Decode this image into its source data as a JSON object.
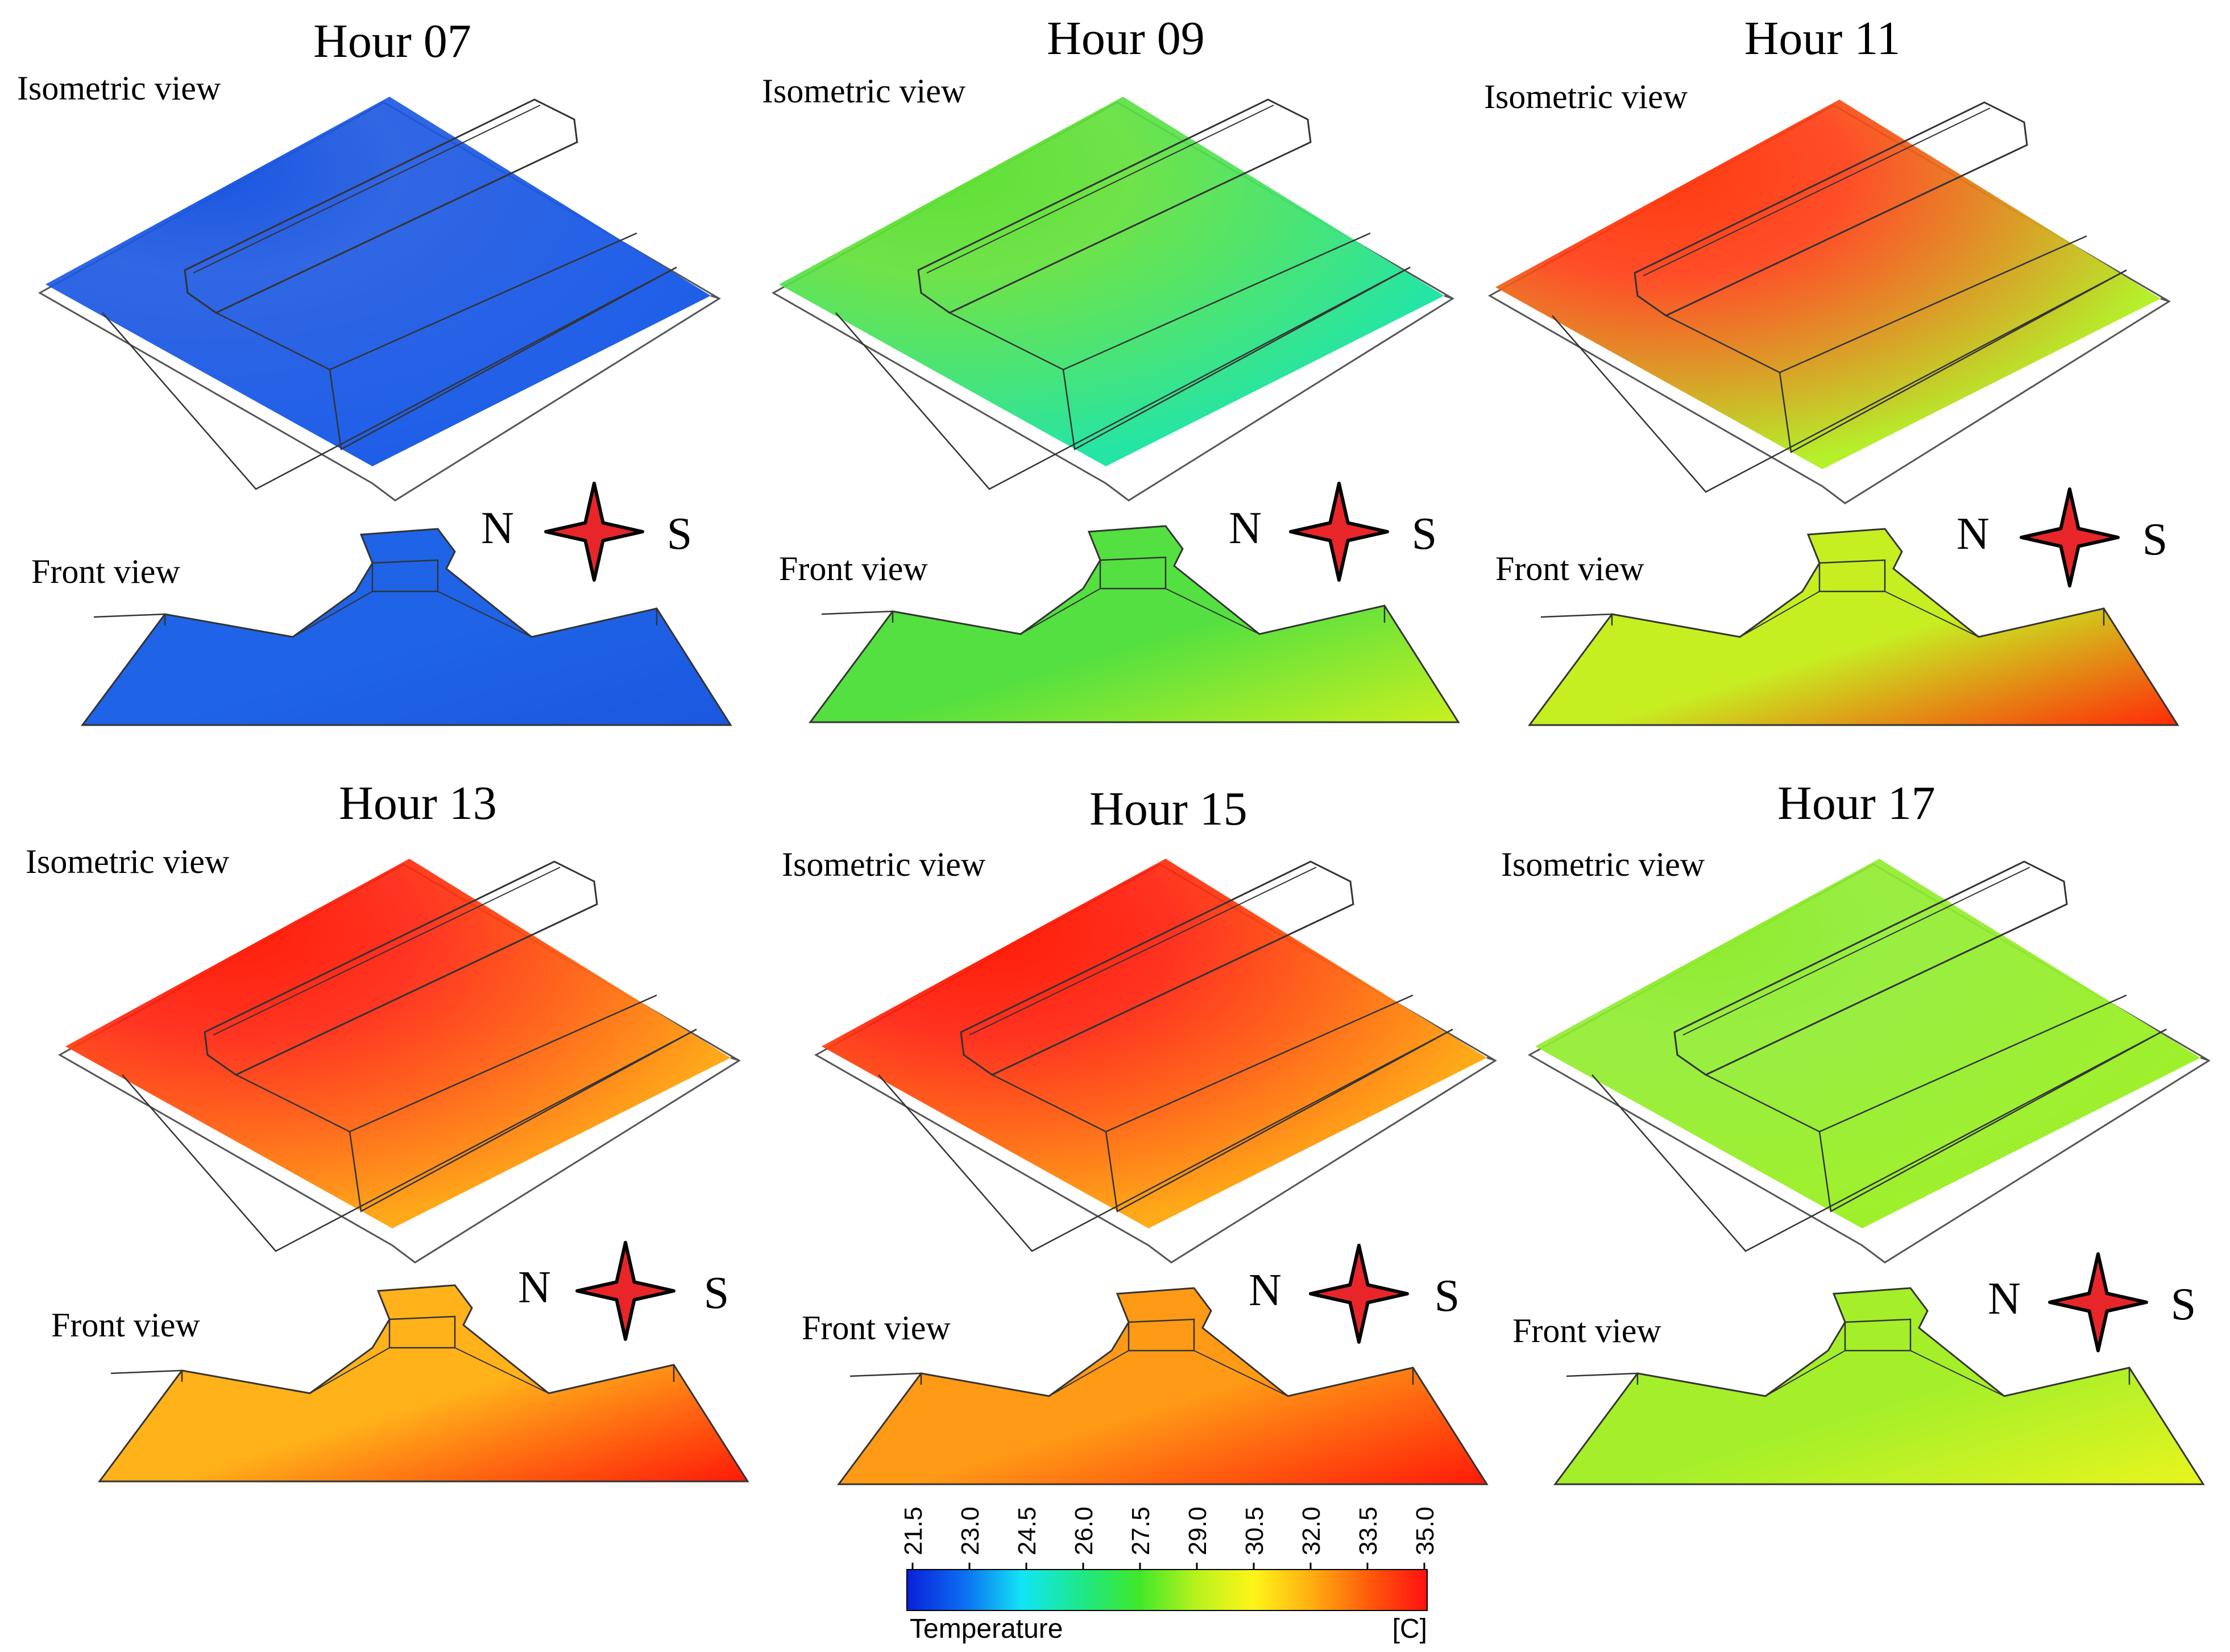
{
  "figure": {
    "panels": [
      {
        "title": "Hour 07",
        "iso_label": "Isometric view",
        "front_label": "Front view",
        "north": "N",
        "south": "S",
        "iso_base": "#1f5fe8",
        "iso_hot": "#1a56e0",
        "front_base": "#1f63e6",
        "front_hot": "#1b58df"
      },
      {
        "title": "Hour 09",
        "iso_label": "Isometric view",
        "front_label": "Front view",
        "north": "N",
        "south": "S",
        "iso_base": "#24e5a6",
        "iso_hot": "#5fe035",
        "front_base": "#54e040",
        "front_hot": "#c8f020"
      },
      {
        "title": "Hour 11",
        "iso_label": "Isometric view",
        "front_label": "Front view",
        "north": "N",
        "south": "S",
        "iso_base": "#b5f02a",
        "iso_hot": "#ff3a10",
        "front_base": "#c6ef22",
        "front_hot": "#ff2a08"
      },
      {
        "title": "Hour 13",
        "iso_label": "Isometric view",
        "front_label": "Front view",
        "north": "N",
        "south": "S",
        "iso_base": "#ffa81a",
        "iso_hot": "#ff1e0a",
        "front_base": "#ffb21a",
        "front_hot": "#ff1a08"
      },
      {
        "title": "Hour 15",
        "iso_label": "Isometric view",
        "front_label": "Front view",
        "north": "N",
        "south": "S",
        "iso_base": "#ffaa18",
        "iso_hot": "#ff1c08",
        "front_base": "#ff9a16",
        "front_hot": "#ff1a08"
      },
      {
        "title": "Hour 17",
        "iso_label": "Isometric view",
        "front_label": "Front view",
        "north": "N",
        "south": "S",
        "iso_base": "#9ff02c",
        "iso_hot": "#8eec2e",
        "front_base": "#a4ef2a",
        "front_hot": "#e8f51e"
      }
    ]
  },
  "legend": {
    "title": "Temperature",
    "unit": "[C]",
    "ticks": [
      "21.5",
      "23.0",
      "24.5",
      "26.0",
      "27.5",
      "29.0",
      "30.5",
      "32.0",
      "33.5",
      "35.0"
    ],
    "colors": [
      "#0a1fd8",
      "#0b6ff2",
      "#12e6f4",
      "#1de88a",
      "#3ee82a",
      "#b7f21e",
      "#fff518",
      "#ffae10",
      "#ff5a0a",
      "#ff1010"
    ]
  },
  "compass_color": "#e8262a"
}
